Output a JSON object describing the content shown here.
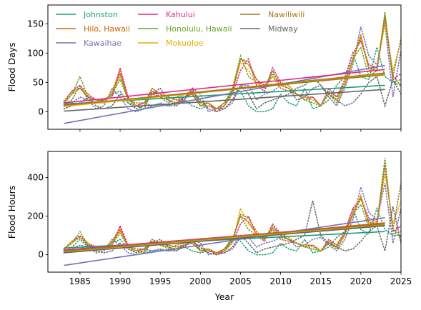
{
  "chart_data": {
    "type": "line",
    "xlabel": "Year",
    "x_ticks": [
      1985,
      1990,
      1995,
      2000,
      2005,
      2010,
      2015,
      2020,
      2025
    ],
    "xlim": [
      1981,
      2025
    ],
    "legend": {
      "placement": "top-left of upper panel",
      "columns": 3,
      "items": [
        "Johnston",
        "Hilo, Hawaii",
        "Kawaihae",
        "Kahului",
        "Honolulu, Hawaii",
        "Mokuoloe",
        "Nawiliwili",
        "Midway"
      ]
    },
    "series_colors": {
      "Johnston": "#1b9e77",
      "Hilo, Hawaii": "#d95f02",
      "Kawaihae": "#7570b3",
      "Kahului": "#e7298a",
      "Honolulu, Hawaii": "#66a61e",
      "Mokuoloe": "#e6ab02",
      "Nawiliwili": "#a6761d",
      "Midway": "#666666"
    },
    "line_styles": {
      "observed": "dotted",
      "trend": "solid"
    },
    "panels": [
      {
        "ylabel": "Flood Days",
        "ylim": [
          -30,
          182
        ],
        "y_ticks": [
          0,
          50,
          100,
          150
        ],
        "trends": {
          "Johnston": [
            13,
            45
          ],
          "Hilo, Hawaii": [
            10,
            66
          ],
          "Kawaihae": [
            -20,
            79
          ],
          "Kahului": [
            15,
            72
          ],
          "Honolulu, Hawaii": [
            10,
            65
          ],
          "Mokuoloe": [
            9,
            64
          ],
          "Nawiliwili": [
            11,
            63
          ],
          "Midway": [
            1,
            38
          ]
        },
        "observed": {
          "Johnston": [
            12,
            20,
            45,
            20,
            15,
            20,
            30,
            35,
            15,
            10,
            15,
            10,
            12,
            10,
            15,
            20,
            10,
            5,
            10,
            5,
            15,
            40,
            35,
            10,
            0,
            0,
            5,
            30,
            15,
            10,
            40,
            5,
            10,
            20,
            45,
            60,
            100,
            60,
            55,
            110,
            60,
            50,
            45
          ],
          "Hilo, Hawaii": [
            15,
            30,
            40,
            25,
            20,
            15,
            35,
            70,
            20,
            10,
            15,
            30,
            25,
            20,
            15,
            25,
            30,
            10,
            10,
            5,
            15,
            35,
            90,
            80,
            55,
            45,
            60,
            40,
            35,
            30,
            20,
            25,
            10,
            30,
            20,
            50,
            90,
            130,
            75,
            70,
            165,
            60,
            45
          ],
          "Kawaihae": [
            10,
            15,
            25,
            20,
            5,
            10,
            40,
            25,
            5,
            0,
            5,
            10,
            15,
            10,
            10,
            20,
            40,
            30,
            0,
            5,
            5,
            15,
            45,
            45,
            20,
            30,
            35,
            45,
            40,
            20,
            25,
            40,
            45,
            25,
            10,
            40,
            80,
            145,
            95,
            80,
            150,
            25,
            105
          ],
          "Kahului": [
            18,
            35,
            45,
            30,
            20,
            20,
            25,
            75,
            25,
            10,
            15,
            35,
            30,
            25,
            20,
            20,
            40,
            10,
            15,
            0,
            10,
            30,
            70,
            90,
            45,
            35,
            75,
            50,
            45,
            30,
            25,
            25,
            10,
            40,
            25,
            55,
            100,
            120,
            80,
            75,
            160,
            55,
            65
          ],
          "Honolulu, Hawaii": [
            15,
            30,
            60,
            25,
            20,
            15,
            30,
            55,
            20,
            10,
            5,
            35,
            25,
            15,
            25,
            30,
            35,
            15,
            15,
            5,
            10,
            40,
            95,
            60,
            50,
            40,
            65,
            45,
            40,
            30,
            20,
            15,
            10,
            30,
            15,
            45,
            90,
            110,
            60,
            70,
            170,
            50,
            55
          ],
          "Mokuoloe": [
            12,
            30,
            40,
            30,
            15,
            15,
            35,
            60,
            20,
            10,
            10,
            40,
            30,
            20,
            15,
            30,
            35,
            10,
            15,
            5,
            10,
            30,
            85,
            70,
            50,
            40,
            60,
            45,
            45,
            30,
            25,
            20,
            10,
            35,
            20,
            45,
            85,
            130,
            70,
            75,
            150,
            70,
            120
          ],
          "Nawiliwili": [
            15,
            35,
            40,
            25,
            20,
            20,
            30,
            65,
            20,
            15,
            15,
            40,
            30,
            25,
            20,
            25,
            30,
            10,
            15,
            5,
            10,
            35,
            90,
            85,
            55,
            40,
            70,
            45,
            40,
            30,
            20,
            25,
            10,
            35,
            25,
            50,
            90,
            125,
            75,
            70,
            160,
            60,
            125
          ],
          "Midway": [
            5,
            10,
            15,
            25,
            10,
            5,
            10,
            30,
            15,
            5,
            10,
            30,
            40,
            20,
            10,
            25,
            35,
            20,
            5,
            0,
            5,
            20,
            45,
            30,
            5,
            15,
            20,
            25,
            30,
            40,
            45,
            60,
            45,
            30,
            20,
            10,
            15,
            30,
            50,
            60,
            10,
            55,
            30
          ]
        }
      },
      {
        "ylabel": "Flood Hours",
        "ylim": [
          -90,
          535
        ],
        "y_ticks": [
          0,
          200,
          400
        ],
        "trends": {
          "Johnston": [
            35,
            120
          ],
          "Hilo, Hawaii": [
            15,
            165
          ],
          "Kawaihae": [
            -55,
            192
          ],
          "Kahului": [
            25,
            160
          ],
          "Honolulu, Hawaii": [
            15,
            155
          ],
          "Mokuoloe": [
            12,
            158
          ],
          "Nawiliwili": [
            20,
            160
          ],
          "Midway": [
            10,
            150
          ]
        },
        "observed": {
          "Johnston": [
            20,
            40,
            80,
            40,
            30,
            40,
            60,
            80,
            30,
            20,
            30,
            20,
            25,
            20,
            30,
            40,
            20,
            10,
            20,
            10,
            30,
            90,
            70,
            20,
            0,
            0,
            10,
            60,
            30,
            20,
            80,
            10,
            20,
            40,
            90,
            120,
            240,
            130,
            110,
            240,
            130,
            100,
            100
          ],
          "Hilo, Hawaii": [
            30,
            60,
            100,
            50,
            40,
            30,
            70,
            140,
            40,
            20,
            30,
            60,
            50,
            40,
            30,
            50,
            60,
            20,
            20,
            10,
            30,
            80,
            200,
            170,
            110,
            90,
            130,
            80,
            70,
            60,
            40,
            50,
            20,
            60,
            40,
            110,
            220,
            300,
            160,
            150,
            460,
            130,
            90
          ],
          "Kawaihae": [
            20,
            30,
            50,
            40,
            10,
            20,
            80,
            50,
            10,
            0,
            10,
            20,
            30,
            20,
            20,
            40,
            80,
            60,
            0,
            10,
            10,
            30,
            90,
            90,
            40,
            60,
            70,
            90,
            80,
            40,
            50,
            80,
            90,
            50,
            20,
            80,
            180,
            350,
            220,
            180,
            370,
            60,
            240
          ],
          "Kahului": [
            30,
            70,
            100,
            60,
            40,
            40,
            50,
            150,
            50,
            20,
            30,
            70,
            60,
            50,
            40,
            40,
            80,
            20,
            30,
            0,
            20,
            60,
            160,
            200,
            100,
            70,
            160,
            110,
            90,
            60,
            50,
            50,
            20,
            80,
            50,
            120,
            240,
            290,
            190,
            170,
            480,
            120,
            150
          ],
          "Honolulu, Hawaii": [
            25,
            60,
            120,
            50,
            40,
            30,
            60,
            110,
            40,
            20,
            10,
            70,
            50,
            30,
            50,
            60,
            70,
            30,
            30,
            10,
            20,
            80,
            200,
            130,
            100,
            80,
            140,
            100,
            80,
            60,
            40,
            30,
            20,
            60,
            30,
            100,
            210,
            260,
            140,
            160,
            500,
            110,
            120
          ],
          "Mokuoloe": [
            25,
            60,
            90,
            60,
            30,
            30,
            70,
            120,
            40,
            20,
            20,
            80,
            60,
            40,
            30,
            60,
            70,
            20,
            30,
            10,
            20,
            60,
            240,
            160,
            110,
            80,
            130,
            100,
            90,
            60,
            50,
            40,
            20,
            70,
            40,
            100,
            200,
            310,
            160,
            170,
            420,
            160,
            280
          ],
          "Nawiliwili": [
            30,
            70,
            90,
            50,
            40,
            40,
            60,
            130,
            40,
            30,
            30,
            80,
            60,
            50,
            40,
            50,
            60,
            20,
            30,
            10,
            20,
            70,
            210,
            190,
            120,
            80,
            150,
            100,
            80,
            60,
            40,
            50,
            20,
            70,
            50,
            110,
            210,
            290,
            170,
            160,
            460,
            130,
            370
          ],
          "Midway": [
            10,
            20,
            30,
            50,
            20,
            10,
            20,
            60,
            30,
            10,
            20,
            60,
            80,
            40,
            20,
            50,
            70,
            40,
            10,
            0,
            10,
            40,
            100,
            60,
            10,
            30,
            40,
            50,
            60,
            80,
            100,
            280,
            100,
            60,
            40,
            20,
            30,
            70,
            120,
            150,
            20,
            250,
            60
          ]
        }
      }
    ]
  }
}
